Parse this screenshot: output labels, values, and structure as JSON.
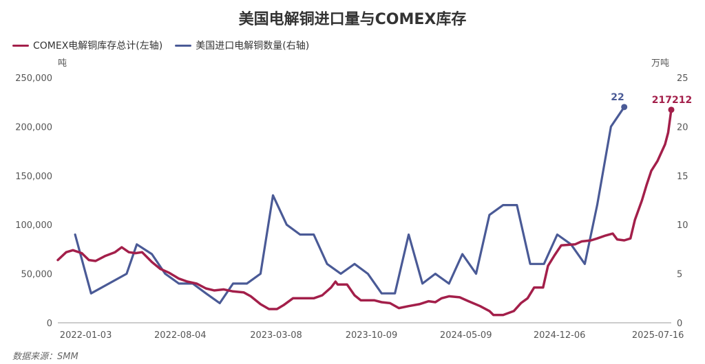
{
  "chart_data": {
    "type": "line",
    "title": "美国电解铜进口量与COMEX库存",
    "source": "数据来源：SMM",
    "left_unit": "吨",
    "right_unit": "万吨",
    "left_ylim": [
      0,
      250000
    ],
    "left_ticks": [
      "250,000",
      "200,000",
      "150,000",
      "100,000",
      "50,000",
      "0"
    ],
    "left_tick_values": [
      250000,
      200000,
      150000,
      100000,
      50000,
      0
    ],
    "right_ylim": [
      0,
      25
    ],
    "right_ticks": [
      "25",
      "20",
      "15",
      "10",
      "5",
      "0"
    ],
    "right_tick_values": [
      25,
      20,
      15,
      10,
      5,
      0
    ],
    "x_range": [
      "2021-11-01",
      "2025-08-15"
    ],
    "x_ticks": [
      "2022-01-03",
      "2022-08-04",
      "2023-03-08",
      "2023-10-09",
      "2024-05-09",
      "2024-12-06",
      "2025-07-16"
    ],
    "legend_position": "top-left",
    "grid": false,
    "colors": {
      "inventory": "#a31f4a",
      "imports": "#4a5a96"
    },
    "series": [
      {
        "name": "COMEX电解铜库存总计(左轴)",
        "axis": "left",
        "end_label": "217212",
        "points": [
          [
            "2021-11-01",
            64000
          ],
          [
            "2021-11-20",
            72000
          ],
          [
            "2021-12-05",
            74000
          ],
          [
            "2021-12-25",
            71000
          ],
          [
            "2022-01-10",
            64000
          ],
          [
            "2022-01-25",
            63000
          ],
          [
            "2022-02-15",
            68000
          ],
          [
            "2022-03-10",
            72000
          ],
          [
            "2022-03-25",
            77000
          ],
          [
            "2022-04-10",
            72000
          ],
          [
            "2022-04-25",
            71000
          ],
          [
            "2022-05-10",
            72000
          ],
          [
            "2022-06-01",
            62000
          ],
          [
            "2022-06-20",
            55000
          ],
          [
            "2022-07-10",
            51000
          ],
          [
            "2022-08-01",
            45000
          ],
          [
            "2022-08-20",
            42000
          ],
          [
            "2022-09-10",
            40000
          ],
          [
            "2022-10-01",
            35000
          ],
          [
            "2022-10-20",
            33000
          ],
          [
            "2022-11-10",
            34000
          ],
          [
            "2022-12-01",
            32000
          ],
          [
            "2022-12-25",
            31000
          ],
          [
            "2023-01-10",
            27000
          ],
          [
            "2023-02-01",
            19000
          ],
          [
            "2023-02-20",
            14000
          ],
          [
            "2023-03-10",
            14000
          ],
          [
            "2023-03-25",
            18000
          ],
          [
            "2023-04-15",
            25000
          ],
          [
            "2023-05-10",
            25000
          ],
          [
            "2023-06-01",
            25000
          ],
          [
            "2023-06-20",
            28000
          ],
          [
            "2023-07-10",
            36000
          ],
          [
            "2023-07-20",
            42000
          ],
          [
            "2023-07-25",
            39000
          ],
          [
            "2023-08-15",
            39000
          ],
          [
            "2023-09-01",
            28000
          ],
          [
            "2023-09-15",
            23000
          ],
          [
            "2023-10-15",
            23000
          ],
          [
            "2023-11-01",
            21000
          ],
          [
            "2023-11-20",
            20000
          ],
          [
            "2023-12-10",
            15000
          ],
          [
            "2024-01-01",
            17000
          ],
          [
            "2024-01-25",
            19000
          ],
          [
            "2024-02-15",
            22000
          ],
          [
            "2024-03-01",
            21000
          ],
          [
            "2024-03-15",
            25000
          ],
          [
            "2024-04-01",
            27000
          ],
          [
            "2024-04-25",
            26000
          ],
          [
            "2024-05-15",
            22000
          ],
          [
            "2024-06-10",
            17000
          ],
          [
            "2024-07-01",
            12000
          ],
          [
            "2024-07-10",
            8000
          ],
          [
            "2024-08-01",
            8000
          ],
          [
            "2024-08-25",
            12000
          ],
          [
            "2024-09-10",
            20000
          ],
          [
            "2024-09-25",
            25000
          ],
          [
            "2024-10-10",
            36000
          ],
          [
            "2024-10-30",
            36000
          ],
          [
            "2024-11-10",
            58000
          ],
          [
            "2024-11-25",
            69000
          ],
          [
            "2024-12-10",
            79000
          ],
          [
            "2025-01-10",
            80000
          ],
          [
            "2025-01-25",
            83000
          ],
          [
            "2025-02-15",
            84000
          ],
          [
            "2025-03-01",
            86000
          ],
          [
            "2025-03-20",
            89000
          ],
          [
            "2025-04-05",
            91000
          ],
          [
            "2025-04-15",
            85000
          ],
          [
            "2025-05-01",
            84000
          ],
          [
            "2025-05-15",
            86000
          ],
          [
            "2025-05-25",
            105000
          ],
          [
            "2025-06-10",
            125000
          ],
          [
            "2025-06-20",
            140000
          ],
          [
            "2025-07-01",
            155000
          ],
          [
            "2025-07-15",
            165000
          ],
          [
            "2025-08-01",
            182000
          ],
          [
            "2025-08-08",
            194000
          ],
          [
            "2025-08-15",
            217212
          ]
        ]
      },
      {
        "name": "美国进口电解铜数量(右轴)",
        "axis": "right",
        "end_label": "22",
        "points": [
          [
            "2021-12-10",
            9
          ],
          [
            "2022-01-15",
            3
          ],
          [
            "2022-04-05",
            5
          ],
          [
            "2022-04-28",
            8
          ],
          [
            "2022-06-01",
            7
          ],
          [
            "2022-07-01",
            5
          ],
          [
            "2022-08-01",
            4
          ],
          [
            "2022-09-01",
            4
          ],
          [
            "2022-10-01",
            3
          ],
          [
            "2022-11-01",
            2
          ],
          [
            "2022-12-01",
            4
          ],
          [
            "2023-01-01",
            4
          ],
          [
            "2023-02-01",
            5
          ],
          [
            "2023-03-01",
            13
          ],
          [
            "2023-04-01",
            10
          ],
          [
            "2023-05-01",
            9
          ],
          [
            "2023-06-01",
            9
          ],
          [
            "2023-07-01",
            6
          ],
          [
            "2023-08-01",
            5
          ],
          [
            "2023-09-01",
            6
          ],
          [
            "2023-10-01",
            5
          ],
          [
            "2023-11-01",
            3
          ],
          [
            "2023-12-01",
            3
          ],
          [
            "2024-01-01",
            9
          ],
          [
            "2024-02-01",
            4
          ],
          [
            "2024-03-01",
            5
          ],
          [
            "2024-04-01",
            4
          ],
          [
            "2024-05-01",
            7
          ],
          [
            "2024-06-01",
            5
          ],
          [
            "2024-07-01",
            11
          ],
          [
            "2024-08-01",
            12
          ],
          [
            "2024-09-01",
            12
          ],
          [
            "2024-10-01",
            6
          ],
          [
            "2024-11-01",
            6
          ],
          [
            "2024-12-01",
            9
          ],
          [
            "2025-01-01",
            8
          ],
          [
            "2025-02-01",
            6
          ],
          [
            "2025-03-01",
            12
          ],
          [
            "2025-04-01",
            20
          ],
          [
            "2025-05-01",
            22
          ]
        ]
      }
    ]
  }
}
